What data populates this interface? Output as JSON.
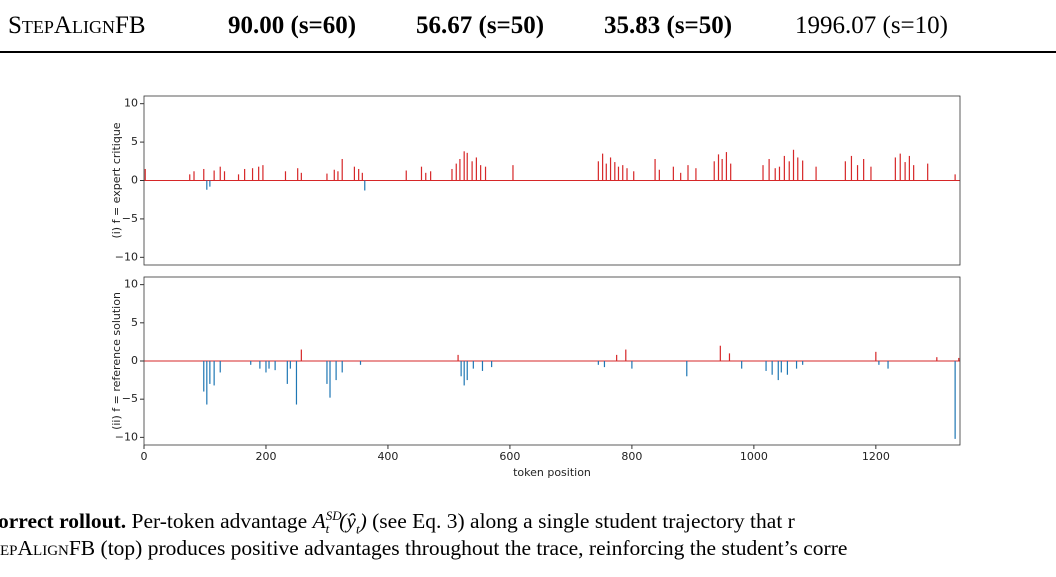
{
  "table": {
    "row": {
      "name": "StepAlignFB",
      "cells": [
        "90.00 (s=60)",
        "56.67 (s=50)",
        "35.83 (s=50)",
        "1996.07 (s=10)"
      ]
    }
  },
  "chart_data": [
    {
      "type": "bar",
      "ylabel": "(i) f = expert critique",
      "positive_color": "#d62728",
      "negative_color": "#1f77b4",
      "xlim": [
        0,
        1338
      ],
      "ylim": [
        -11,
        11
      ],
      "yticks": [
        {
          "value": -10,
          "label": "−10"
        },
        {
          "value": -5,
          "label": "−5"
        },
        0,
        5,
        10
      ],
      "x": [
        2,
        75,
        82,
        98,
        103,
        108,
        115,
        125,
        132,
        155,
        165,
        178,
        188,
        195,
        232,
        252,
        258,
        300,
        312,
        318,
        325,
        345,
        352,
        358,
        362,
        430,
        455,
        462,
        470,
        505,
        512,
        518,
        525,
        530,
        538,
        545,
        552,
        560,
        605,
        745,
        752,
        758,
        765,
        772,
        778,
        785,
        792,
        803,
        838,
        845,
        868,
        880,
        892,
        905,
        935,
        942,
        948,
        955,
        962,
        1015,
        1025,
        1035,
        1042,
        1050,
        1058,
        1065,
        1072,
        1080,
        1102,
        1150,
        1160,
        1170,
        1180,
        1192,
        1232,
        1240,
        1248,
        1255,
        1262,
        1285,
        1330
      ],
      "values": [
        1.5,
        0.8,
        1.2,
        1.5,
        -1.2,
        -0.8,
        1.3,
        1.8,
        1.2,
        0.8,
        1.5,
        1.6,
        1.8,
        2.0,
        1.2,
        1.6,
        1.0,
        0.9,
        1.4,
        1.2,
        2.8,
        1.8,
        1.5,
        1.0,
        -1.3,
        1.3,
        1.8,
        1.0,
        1.2,
        1.5,
        2.2,
        2.8,
        3.8,
        3.6,
        2.5,
        3.0,
        2.0,
        1.8,
        2.0,
        2.5,
        3.5,
        2.2,
        3.0,
        2.4,
        1.8,
        2.0,
        1.6,
        1.2,
        2.8,
        1.4,
        1.8,
        1.0,
        2.0,
        1.6,
        2.5,
        3.4,
        2.8,
        3.7,
        2.2,
        2.0,
        2.8,
        1.6,
        1.8,
        3.2,
        2.5,
        4.0,
        3.0,
        2.6,
        1.8,
        2.5,
        3.2,
        2.0,
        2.8,
        1.8,
        3.0,
        3.5,
        2.4,
        3.2,
        2.0,
        2.2,
        0.8
      ]
    },
    {
      "type": "bar",
      "ylabel": "(ii) f = reference solution",
      "xlabel": "token position",
      "positive_color": "#d62728",
      "negative_color": "#1f77b4",
      "xlim": [
        0,
        1338
      ],
      "ylim": [
        -11,
        11
      ],
      "xticks": [
        0,
        200,
        400,
        600,
        800,
        1000,
        1200
      ],
      "yticks": [
        {
          "value": -10,
          "label": "−10"
        },
        {
          "value": -5,
          "label": "−5"
        },
        0,
        5,
        10
      ],
      "x": [
        98,
        103,
        108,
        115,
        125,
        175,
        190,
        200,
        205,
        215,
        235,
        240,
        250,
        258,
        300,
        305,
        315,
        325,
        355,
        515,
        520,
        525,
        530,
        540,
        555,
        570,
        745,
        755,
        775,
        790,
        800,
        890,
        945,
        960,
        980,
        1020,
        1030,
        1040,
        1045,
        1055,
        1070,
        1080,
        1200,
        1205,
        1220,
        1300,
        1330,
        1336
      ],
      "values": [
        -4.0,
        -5.7,
        -3.0,
        -3.2,
        -1.5,
        -0.5,
        -1.0,
        -1.5,
        -1.0,
        -1.2,
        -3.0,
        -1.0,
        -5.7,
        1.5,
        -3.0,
        -4.8,
        -2.5,
        -1.5,
        -0.5,
        0.8,
        -2.0,
        -3.2,
        -2.5,
        -1.0,
        -1.3,
        -0.8,
        -0.5,
        -0.8,
        0.8,
        1.5,
        -1.0,
        -2.0,
        2.0,
        1.0,
        -1.0,
        -1.3,
        -1.8,
        -2.5,
        -1.5,
        -1.8,
        -1.0,
        -0.5,
        1.2,
        -0.5,
        -1.0,
        0.5,
        -10.2,
        0.4
      ]
    }
  ],
  "caption": {
    "lead": "orrect rollout.",
    "intro": "Per-token advantage",
    "math_base": "A",
    "math_sup": "SD",
    "math_sub": "t",
    "math_open": "(ŷ",
    "math_arg_sub": "t",
    "math_close": ")",
    "rest": "(see Eq. 3) along a single student trajectory that r",
    "line2_sc": "epAlignFB",
    "line2": "(top) produces positive advantages throughout the trace, reinforcing the student’s corre"
  }
}
